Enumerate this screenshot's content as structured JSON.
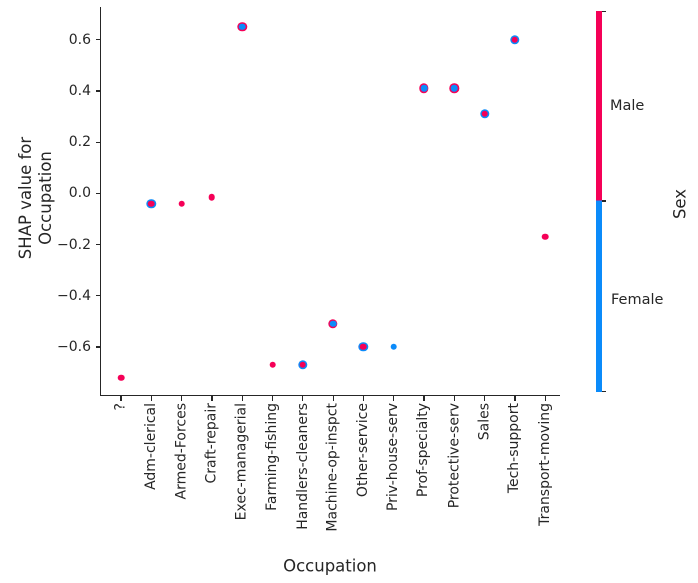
{
  "chart_data": {
    "type": "scatter",
    "title": "",
    "xlabel": "Occupation",
    "ylabel": "SHAP value for Occupation",
    "ylabel_lines": [
      "SHAP value for",
      "Occupation"
    ],
    "categories": [
      "?",
      "Adm-clerical",
      "Armed-Forces",
      "Craft-repair",
      "Exec-managerial",
      "Farming-fishing",
      "Handlers-cleaners",
      "Machine-op-inspct",
      "Other-service",
      "Priv-house-serv",
      "Prof-specialty",
      "Protective-serv",
      "Sales",
      "Tech-support",
      "Transport-moving"
    ],
    "points": [
      {
        "category": "?",
        "shap": -0.72,
        "sex": "Male"
      },
      {
        "category": "Adm-clerical",
        "shap": -0.04,
        "sex": "Male",
        "overlapped_sex": "Female"
      },
      {
        "category": "Armed-Forces",
        "shap": -0.04,
        "sex": "Male"
      },
      {
        "category": "Craft-repair",
        "shap": -0.015,
        "sex": "Male"
      },
      {
        "category": "Exec-managerial",
        "shap": 0.65,
        "sex": "Female",
        "overlapped_sex": "Male"
      },
      {
        "category": "Farming-fishing",
        "shap": -0.67,
        "sex": "Male"
      },
      {
        "category": "Handlers-cleaners",
        "shap": -0.67,
        "sex": "Male",
        "overlapped_sex": "Female"
      },
      {
        "category": "Machine-op-inspct",
        "shap": -0.51,
        "sex": "Female",
        "overlapped_sex": "Male"
      },
      {
        "category": "Other-service",
        "shap": -0.6,
        "sex": "Male",
        "overlapped_sex": "Female"
      },
      {
        "category": "Priv-house-serv",
        "shap": -0.6,
        "sex": "Female"
      },
      {
        "category": "Prof-specialty",
        "shap": 0.41,
        "sex": "Female",
        "overlapped_sex": "Male"
      },
      {
        "category": "Protective-serv",
        "shap": 0.41,
        "sex": "Female",
        "overlapped_sex": "Male"
      },
      {
        "category": "Sales",
        "shap": 0.31,
        "sex": "Male",
        "overlapped_sex": "Female"
      },
      {
        "category": "Tech-support",
        "shap": 0.6,
        "sex": "Male",
        "overlapped_sex": "Female"
      },
      {
        "category": "Transport-moving",
        "shap": -0.17,
        "sex": "Male"
      }
    ],
    "yticks": [
      0.6,
      0.4,
      0.2,
      0.0,
      -0.2,
      -0.4,
      -0.6
    ],
    "ylim": [
      -0.79,
      0.72
    ],
    "grid": false,
    "colors": {
      "Male": "#f50057",
      "Female": "#0b8bfa"
    },
    "colorbar": {
      "title": "Sex",
      "position": "right",
      "segments": [
        {
          "label": "Male",
          "color": "#f50057"
        },
        {
          "label": "Female",
          "color": "#0b8bfa"
        }
      ]
    }
  }
}
